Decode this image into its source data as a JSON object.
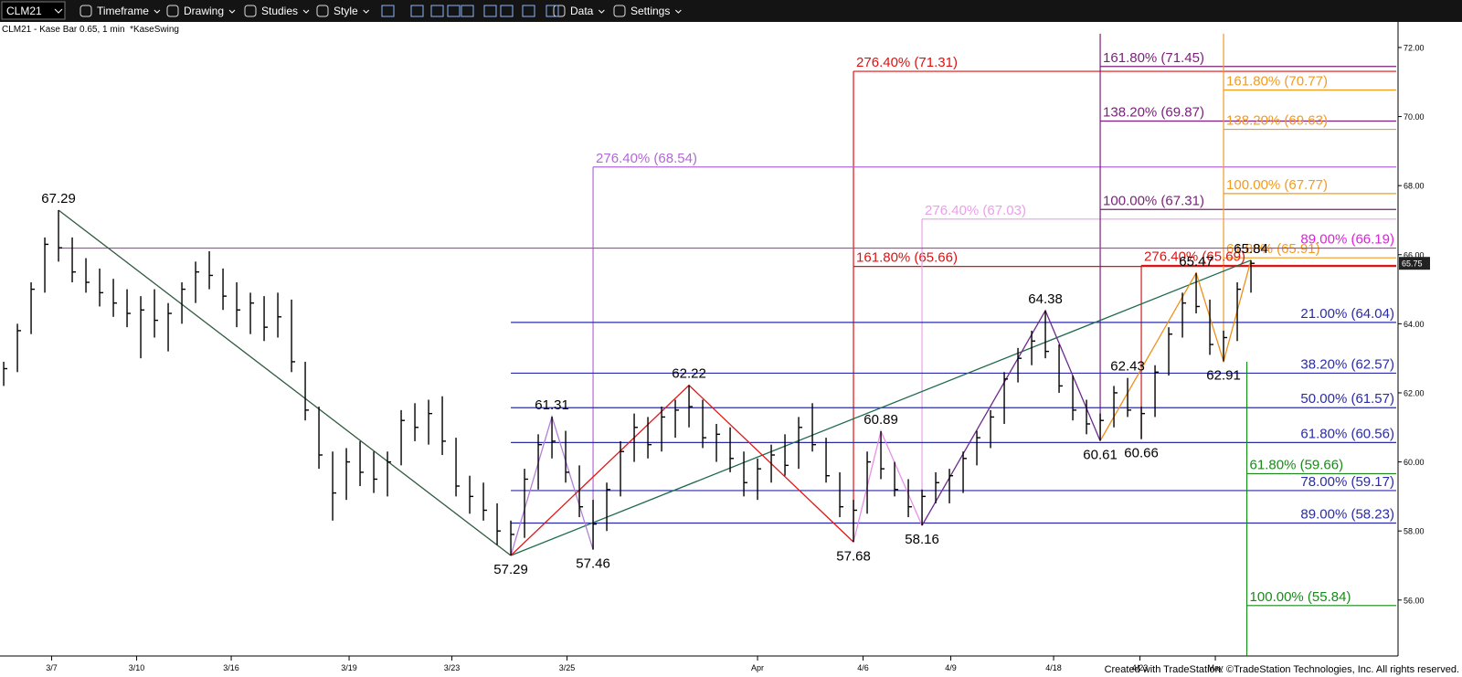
{
  "toolbar": {
    "symbol": "CLM21",
    "items": [
      "Timeframe",
      "Drawing",
      "Studies",
      "Style",
      "Data",
      "Settings"
    ]
  },
  "footer": "Created with TradeStation. ©TradeStation Technologies, Inc. All rights reserved.",
  "chart_data": {
    "type": "ohlc",
    "title": "CLM21 - Kase Bar 0.65, 1 min  *KaseSwing",
    "color": "#000000",
    "xlim": [
      -0.27,
      101.73
    ],
    "ylim": [
      54.38,
      72.74
    ],
    "yticks": [
      {
        "value": 56,
        "label": "56.00"
      },
      {
        "value": 58,
        "label": "58.00"
      },
      {
        "value": 60,
        "label": "60.00"
      },
      {
        "value": 62,
        "label": "62.00"
      },
      {
        "value": 64,
        "label": "64.00"
      },
      {
        "value": 66,
        "label": "66.00"
      },
      {
        "value": 68,
        "label": "68.00"
      },
      {
        "value": 70,
        "label": "70.00"
      },
      {
        "value": 72,
        "label": "72.00"
      }
    ],
    "xticks": [
      {
        "value": 3.5,
        "label": "3/7"
      },
      {
        "value": 9.7,
        "label": "3/10"
      },
      {
        "value": 16.6,
        "label": "3/16"
      },
      {
        "value": 25.2,
        "label": "3/19"
      },
      {
        "value": 32.7,
        "label": "3/23"
      },
      {
        "value": 41.1,
        "label": "3/25"
      },
      {
        "value": 55,
        "label": "Apr"
      },
      {
        "value": 62.7,
        "label": "4/6"
      },
      {
        "value": 69.1,
        "label": "4/9"
      },
      {
        "value": 76.6,
        "label": "4/18"
      },
      {
        "value": 82.9,
        "label": "4/23"
      },
      {
        "value": 88.4,
        "label": "May"
      }
    ],
    "last_price": 65.75,
    "high": [
      62.9,
      64.0,
      65.2,
      66.5,
      67.29,
      66.5,
      65.9,
      65.6,
      65.3,
      65.0,
      64.8,
      65.0,
      64.6,
      65.2,
      65.8,
      66.1,
      65.6,
      65.2,
      64.9,
      64.8,
      64.9,
      64.7,
      62.9,
      61.6,
      60.3,
      60.4,
      60.6,
      60.3,
      60.3,
      61.5,
      61.7,
      61.8,
      61.9,
      60.7,
      59.6,
      59.4,
      58.8,
      58.3,
      59.8,
      60.8,
      61.31,
      60.9,
      59.9,
      58.9,
      59.4,
      60.6,
      61.4,
      61.3,
      61.6,
      61.8,
      62.22,
      61.8,
      61.1,
      61.0,
      60.3,
      60.1,
      60.5,
      60.8,
      61.3,
      61.7,
      60.7,
      59.7,
      58.9,
      60.3,
      60.89,
      60.0,
      59.5,
      59.2,
      59.7,
      59.8,
      60.3,
      60.9,
      61.5,
      62.6,
      63.3,
      63.8,
      64.38,
      63.4,
      62.5,
      61.8,
      61.4,
      62.2,
      62.43,
      61.6,
      62.8,
      63.9,
      64.9,
      65.47,
      64.7,
      63.8,
      65.2,
      65.84
    ],
    "low": [
      62.2,
      62.6,
      63.7,
      64.9,
      65.8,
      65.2,
      64.9,
      64.5,
      64.2,
      63.9,
      63.0,
      63.6,
      63.2,
      64.0,
      64.6,
      65.0,
      64.4,
      63.9,
      63.7,
      63.5,
      63.6,
      62.6,
      61.2,
      59.8,
      58.3,
      58.9,
      59.3,
      59.1,
      59.0,
      59.9,
      60.6,
      60.5,
      60.2,
      59.0,
      58.5,
      58.3,
      57.6,
      57.29,
      57.8,
      59.2,
      60.1,
      59.4,
      58.4,
      57.46,
      58.0,
      59.0,
      60.0,
      60.1,
      60.3,
      60.7,
      61.0,
      60.4,
      60.0,
      59.7,
      59.0,
      58.9,
      59.4,
      59.6,
      59.8,
      60.3,
      59.4,
      58.4,
      57.68,
      58.5,
      59.5,
      59.0,
      58.4,
      58.16,
      58.8,
      58.8,
      59.1,
      59.9,
      60.4,
      61.1,
      62.3,
      62.8,
      63.0,
      62.0,
      61.2,
      60.8,
      60.61,
      61.0,
      61.3,
      60.66,
      61.3,
      62.5,
      63.6,
      64.3,
      63.1,
      62.91,
      63.5,
      64.9
    ],
    "close": [
      62.7,
      63.8,
      65.0,
      66.3,
      66.2,
      65.5,
      65.2,
      64.9,
      64.6,
      64.3,
      64.4,
      64.1,
      64.3,
      65.0,
      65.5,
      65.4,
      64.8,
      64.4,
      64.6,
      63.9,
      64.2,
      62.9,
      61.5,
      60.2,
      59.1,
      60.0,
      59.7,
      59.5,
      60.0,
      61.2,
      61.0,
      61.4,
      60.6,
      59.3,
      59.0,
      58.6,
      58.0,
      57.9,
      59.5,
      60.5,
      60.6,
      59.7,
      58.7,
      58.2,
      59.2,
      60.3,
      61.0,
      60.5,
      61.3,
      61.5,
      61.6,
      60.7,
      60.8,
      60.1,
      59.4,
      59.8,
      60.2,
      59.9,
      61.0,
      60.5,
      59.6,
      58.7,
      58.6,
      60.0,
      59.8,
      59.2,
      58.7,
      59.0,
      59.4,
      59.6,
      60.1,
      60.7,
      61.3,
      62.4,
      63.0,
      63.5,
      63.2,
      62.2,
      61.5,
      61.1,
      61.2,
      62.0,
      61.5,
      61.4,
      62.6,
      63.7,
      64.6,
      64.5,
      63.4,
      63.6,
      65.0,
      65.75
    ],
    "swing_labels": [
      {
        "x": 4,
        "value": 67.29,
        "side": "above"
      },
      {
        "x": 37,
        "value": 57.29,
        "side": "below"
      },
      {
        "x": 40,
        "value": 61.31,
        "side": "above"
      },
      {
        "x": 43,
        "value": 57.46,
        "side": "below"
      },
      {
        "x": 50,
        "value": 62.22,
        "side": "above"
      },
      {
        "x": 62,
        "value": 57.68,
        "side": "below"
      },
      {
        "x": 64,
        "value": 60.89,
        "side": "above"
      },
      {
        "x": 67,
        "value": 58.16,
        "side": "below"
      },
      {
        "x": 76,
        "value": 64.38,
        "side": "above"
      },
      {
        "x": 80,
        "value": 60.61,
        "side": "below"
      },
      {
        "x": 82,
        "value": 62.43,
        "side": "above"
      },
      {
        "x": 83,
        "value": 60.66,
        "side": "below"
      },
      {
        "x": 87,
        "value": 65.47,
        "side": "above"
      },
      {
        "x": 89,
        "value": 62.91,
        "side": "below"
      },
      {
        "x": 91,
        "value": 65.84,
        "side": "above"
      }
    ],
    "swing_lines": [
      {
        "color": "#2f5a3e",
        "x": [
          4,
          37
        ],
        "y": [
          67.29,
          57.29
        ]
      },
      {
        "color": "#1f6a4c",
        "x": [
          37,
          91
        ],
        "y": [
          57.29,
          65.84
        ]
      },
      {
        "color": "#b47fd8",
        "x": [
          37,
          40,
          43
        ],
        "y": [
          57.29,
          61.31,
          57.46
        ]
      },
      {
        "color": "#e01818",
        "x": [
          37,
          50,
          62
        ],
        "y": [
          57.29,
          62.22,
          57.68
        ]
      },
      {
        "color": "#e890e8",
        "x": [
          62,
          64,
          67
        ],
        "y": [
          57.68,
          60.89,
          58.16
        ]
      },
      {
        "color": "#6c2a8c",
        "x": [
          67,
          76,
          80
        ],
        "y": [
          58.16,
          64.38,
          60.61
        ]
      },
      {
        "color": "#f0901a",
        "x": [
          80,
          87,
          89,
          91
        ],
        "y": [
          60.61,
          65.47,
          62.91,
          65.84
        ]
      }
    ],
    "fibs": [
      {
        "color": "#e01010",
        "x": 62,
        "span": [
          57.68,
          71.31
        ],
        "label_align": "start",
        "levels": [
          {
            "label": "276.40% (71.31)",
            "value": 71.31
          },
          {
            "label": "161.80% (65.66)",
            "value": 65.66
          }
        ]
      },
      {
        "color": "#b468d8",
        "x": 43,
        "span": [
          57.46,
          68.54
        ],
        "label_align": "start",
        "levels": [
          {
            "label": "276.40% (68.54)",
            "value": 68.54
          }
        ]
      },
      {
        "color": "#eaa0ea",
        "x": 67,
        "span": [
          58.16,
          67.03
        ],
        "label_align": "start",
        "levels": [
          {
            "label": "276.40% (67.03)",
            "value": 67.03
          }
        ]
      },
      {
        "color": "#7a1f7a",
        "x": 80,
        "span": [
          60.61,
          72.4
        ],
        "label_align": "start",
        "levels": [
          {
            "label": "161.80% (71.45)",
            "value": 71.45
          },
          {
            "label": "138.20% (69.87)",
            "value": 69.87
          },
          {
            "label": "100.00% (67.31)",
            "value": 67.31
          }
        ]
      },
      {
        "color": "#f39a1f",
        "x": 89,
        "span": [
          62.91,
          72.4
        ],
        "label_align": "start",
        "levels": [
          {
            "label": "161.80% (70.77)",
            "value": 70.77
          },
          {
            "label": "138.20% (69.63)",
            "value": 69.63
          },
          {
            "label": "100.00% (67.77)",
            "value": 67.77
          },
          {
            "label": "61.80% (65.91)",
            "value": 65.91
          }
        ]
      },
      {
        "color": "#d81818",
        "x": 83,
        "span": [
          60.66,
          65.69
        ],
        "label_align": "start",
        "levels": [
          {
            "label": "276.40% (65.69)",
            "value": 65.69
          }
        ]
      },
      {
        "color": "#e020e0",
        "x": 4,
        "label_align": "end",
        "levels": [
          {
            "label": "89.00% (66.19)",
            "value": 66.19
          }
        ]
      },
      {
        "color": "#2b2ba8",
        "x": 37,
        "label_align": "end",
        "levels": [
          {
            "label": "21.00% (64.04)",
            "value": 64.04
          },
          {
            "label": "38.20% (62.57)",
            "value": 62.57
          },
          {
            "label": "50.00% (61.57)",
            "value": 61.57
          },
          {
            "label": "61.80% (60.56)",
            "value": 60.56
          },
          {
            "label": "78.00% (59.17)",
            "value": 59.17
          },
          {
            "label": "89.00% (58.23)",
            "value": 58.23
          }
        ]
      },
      {
        "color": "#1a8a1a",
        "x": 90.7,
        "span": [
          54.38,
          62.9
        ],
        "label_align": "start",
        "levels": [
          {
            "label": "61.80% (59.66)",
            "value": 59.66
          },
          {
            "label": "100.00% (55.84)",
            "value": 55.84
          }
        ]
      }
    ]
  }
}
